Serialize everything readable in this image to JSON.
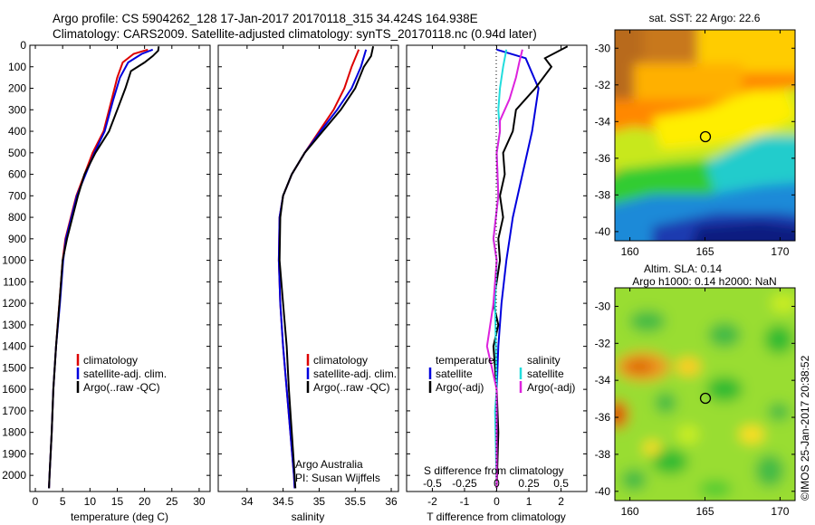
{
  "header": {
    "title_line1": "Argo profile: CS 5904262_128 17-Jan-2017 20170118_315 34.424S 164.938E",
    "title_line2": "Climatology: CARS2009. Satellite-adjusted climatology: synTS_20170118.nc (0.94d later)"
  },
  "colors": {
    "climatology": "#dd0000",
    "satellite": "#0000dd",
    "argo": "#000000",
    "satellite_s": "#22dddd",
    "argo_s": "#dd22dd"
  },
  "chart_data": [
    {
      "type": "line",
      "panel": "temperature",
      "xlabel": "temperature (deg C)",
      "xlim": [
        -1,
        32
      ],
      "ylim": [
        2075,
        0
      ],
      "xticks": [
        "0",
        "5",
        "10",
        "15",
        "20",
        "25",
        "30"
      ],
      "yticks": [
        "0",
        "100",
        "200",
        "300",
        "400",
        "500",
        "600",
        "700",
        "800",
        "900",
        "1000",
        "1100",
        "1200",
        "1300",
        "1400",
        "1500",
        "1600",
        "1700",
        "1800",
        "1900",
        "2000"
      ],
      "legend": [
        "climatology",
        "satellite-adj. clim.",
        "Argo(..raw -QC)"
      ],
      "series": [
        {
          "name": "climatology",
          "color": "#dd0000",
          "points": [
            [
              20.6,
              20
            ],
            [
              18,
              40
            ],
            [
              16,
              80
            ],
            [
              15,
              150
            ],
            [
              14,
              250
            ],
            [
              12.5,
              400
            ],
            [
              10.5,
              500
            ],
            [
              9,
              600
            ],
            [
              7.5,
              700
            ],
            [
              6.5,
              800
            ],
            [
              5.5,
              900
            ],
            [
              5,
              1000
            ],
            [
              4.4,
              1200
            ],
            [
              3.8,
              1400
            ],
            [
              3.3,
              1600
            ],
            [
              3,
              1800
            ],
            [
              2.6,
              2000
            ],
            [
              2.5,
              2060
            ]
          ]
        },
        {
          "name": "satellite-adj. clim.",
          "color": "#0000dd",
          "points": [
            [
              21.5,
              20
            ],
            [
              19.5,
              40
            ],
            [
              17,
              80
            ],
            [
              15.5,
              150
            ],
            [
              14.3,
              250
            ],
            [
              12.7,
              400
            ],
            [
              10.8,
              500
            ],
            [
              9.2,
              600
            ],
            [
              7.6,
              700
            ],
            [
              6.6,
              800
            ],
            [
              5.6,
              900
            ],
            [
              5.1,
              1000
            ],
            [
              4.5,
              1200
            ],
            [
              3.8,
              1400
            ],
            [
              3.3,
              1600
            ],
            [
              3,
              1800
            ],
            [
              2.6,
              2000
            ],
            [
              2.5,
              2060
            ]
          ]
        },
        {
          "name": "Argo(..raw -QC)",
          "color": "#000000",
          "points": [
            [
              22.6,
              5
            ],
            [
              22.5,
              25
            ],
            [
              21.5,
              50
            ],
            [
              20,
              80
            ],
            [
              17.5,
              120
            ],
            [
              16.5,
              200
            ],
            [
              15,
              300
            ],
            [
              13.5,
              400
            ],
            [
              11,
              500
            ],
            [
              9,
              600
            ],
            [
              7.8,
              700
            ],
            [
              6.8,
              800
            ],
            [
              5.8,
              900
            ],
            [
              5,
              1000
            ],
            [
              4.4,
              1200
            ],
            [
              3.8,
              1400
            ],
            [
              3.3,
              1600
            ],
            [
              3,
              1800
            ],
            [
              2.6,
              2000
            ],
            [
              2.5,
              2060
            ]
          ]
        }
      ]
    },
    {
      "type": "line",
      "panel": "salinity",
      "xlabel": "salinity",
      "xlim": [
        33.6,
        36.1
      ],
      "ylim": [
        2075,
        0
      ],
      "xticks": [
        "34",
        "34.5",
        "35",
        "35.5",
        "36"
      ],
      "legend": [
        "climatology",
        "satellite-adj. clim.",
        "Argo(..raw -QC)"
      ],
      "annotation": [
        "Argo Australia",
        "PI: Susan Wijffels"
      ],
      "series": [
        {
          "name": "climatology",
          "color": "#dd0000",
          "points": [
            [
              35.55,
              20
            ],
            [
              35.45,
              100
            ],
            [
              35.35,
              200
            ],
            [
              35.2,
              300
            ],
            [
              35,
              400
            ],
            [
              34.8,
              500
            ],
            [
              34.62,
              600
            ],
            [
              34.5,
              700
            ],
            [
              34.45,
              800
            ],
            [
              34.44,
              1000
            ],
            [
              34.46,
              1200
            ],
            [
              34.5,
              1400
            ],
            [
              34.55,
              1600
            ],
            [
              34.6,
              1800
            ],
            [
              34.65,
              2000
            ],
            [
              34.66,
              2060
            ]
          ]
        },
        {
          "name": "satellite-adj. clim.",
          "color": "#0000dd",
          "points": [
            [
              35.65,
              20
            ],
            [
              35.58,
              100
            ],
            [
              35.45,
              200
            ],
            [
              35.25,
              300
            ],
            [
              35.02,
              400
            ],
            [
              34.8,
              500
            ],
            [
              34.62,
              600
            ],
            [
              34.5,
              700
            ],
            [
              34.45,
              800
            ],
            [
              34.44,
              1000
            ],
            [
              34.46,
              1200
            ],
            [
              34.5,
              1400
            ],
            [
              34.55,
              1600
            ],
            [
              34.6,
              1800
            ],
            [
              34.65,
              2000
            ],
            [
              34.66,
              2060
            ]
          ]
        },
        {
          "name": "Argo(..raw -QC)",
          "color": "#000000",
          "points": [
            [
              35.75,
              5
            ],
            [
              35.72,
              50
            ],
            [
              35.62,
              100
            ],
            [
              35.5,
              200
            ],
            [
              35.3,
              300
            ],
            [
              35.05,
              400
            ],
            [
              34.8,
              500
            ],
            [
              34.62,
              600
            ],
            [
              34.5,
              700
            ],
            [
              34.46,
              800
            ],
            [
              34.45,
              1000
            ],
            [
              34.5,
              1200
            ],
            [
              34.55,
              1400
            ],
            [
              34.58,
              1600
            ],
            [
              34.62,
              1800
            ],
            [
              34.66,
              2000
            ],
            [
              34.67,
              2060
            ]
          ]
        }
      ]
    },
    {
      "type": "line",
      "panel": "difference",
      "xlabel": "T difference from climatology",
      "xlabel_top": "S difference from climatology",
      "xlim": [
        -2.8,
        2.8
      ],
      "ylim": [
        2075,
        0
      ],
      "xticks": [
        "-2",
        "-1",
        "0",
        "1",
        "2"
      ],
      "xticks_s": [
        "-0.5",
        "-0.25",
        "0",
        "0.25",
        "0.5"
      ],
      "legend_t": {
        "title": "temperature",
        "items": [
          "satellite",
          "Argo(-adj)"
        ]
      },
      "legend_s": {
        "title": "salinity",
        "items": [
          "satellite",
          "Argo(-adj)"
        ]
      },
      "series": [
        {
          "name": "T satellite",
          "color": "#0000dd",
          "points": [
            [
              0,
              20
            ],
            [
              0.9,
              60
            ],
            [
              1.3,
              200
            ],
            [
              1.1,
              400
            ],
            [
              0.8,
              600
            ],
            [
              0.5,
              800
            ],
            [
              0.3,
              1000
            ],
            [
              0.15,
              1200
            ],
            [
              0.05,
              1400
            ],
            [
              0,
              1600
            ],
            [
              0,
              2060
            ]
          ]
        },
        {
          "name": "T Argo(-adj)",
          "color": "#000000",
          "points": [
            [
              2.2,
              5
            ],
            [
              1.5,
              60
            ],
            [
              1.7,
              100
            ],
            [
              1.2,
              200
            ],
            [
              0.6,
              300
            ],
            [
              0.5,
              400
            ],
            [
              0.2,
              500
            ],
            [
              0.25,
              600
            ],
            [
              0.1,
              700
            ],
            [
              0.2,
              800
            ],
            [
              0.05,
              900
            ],
            [
              0.1,
              1000
            ],
            [
              -0.1,
              1200
            ],
            [
              0.05,
              1300
            ],
            [
              -0.1,
              1400
            ],
            [
              0,
              1600
            ],
            [
              0.05,
              1800
            ],
            [
              0,
              2060
            ]
          ]
        },
        {
          "name": "S satellite",
          "color": "#22dddd",
          "points": [
            [
              0.3,
              20
            ],
            [
              0.2,
              100
            ],
            [
              0.1,
              200
            ],
            [
              0.05,
              300
            ],
            [
              0.1,
              400
            ],
            [
              0,
              500
            ],
            [
              0.05,
              700
            ],
            [
              -0.1,
              900
            ],
            [
              0,
              1000
            ],
            [
              -0.05,
              1200
            ],
            [
              0,
              1600
            ],
            [
              -0.05,
              1700
            ],
            [
              0,
              2060
            ]
          ]
        },
        {
          "name": "S Argo(-adj)",
          "color": "#dd22dd",
          "points": [
            [
              0.8,
              20
            ],
            [
              0.7,
              80
            ],
            [
              0.6,
              150
            ],
            [
              0.4,
              250
            ],
            [
              0.1,
              350
            ],
            [
              0.1,
              400
            ],
            [
              0.0,
              500
            ],
            [
              0.05,
              700
            ],
            [
              -0.1,
              900
            ],
            [
              0,
              1000
            ],
            [
              -0.1,
              1200
            ],
            [
              -0.3,
              1400
            ],
            [
              -0.15,
              1500
            ],
            [
              0,
              1600
            ],
            [
              0,
              2060
            ]
          ]
        }
      ]
    }
  ],
  "maps": {
    "sst": {
      "title": "sat. SST: 22 Argo: 22.6",
      "yticks": [
        "-30",
        "-32",
        "-34",
        "-36",
        "-38",
        "-40"
      ],
      "xticks": [
        "160",
        "165",
        "170"
      ],
      "marker": {
        "lon": 164.94,
        "lat": -34.42
      }
    },
    "sla": {
      "title_line1": "Altim. SLA: 0.14",
      "title_line2": "Argo h1000: 0.14 h2000: NaN",
      "yticks": [
        "-30",
        "-32",
        "-34",
        "-36",
        "-38",
        "-40"
      ],
      "xticks": [
        "160",
        "165",
        "170"
      ],
      "marker": {
        "lon": 164.94,
        "lat": -34.42
      }
    }
  },
  "footer": {
    "stamp": "©IMOS 25-Jan-2017 20:38:52"
  }
}
